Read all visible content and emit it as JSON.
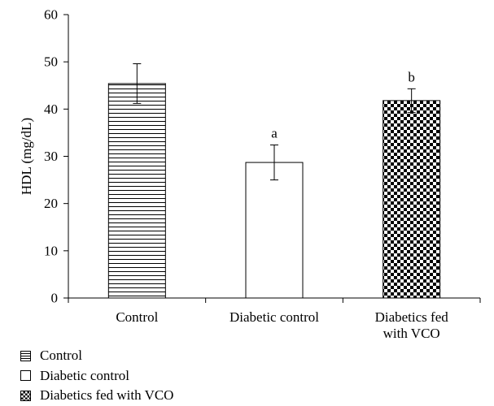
{
  "chart_data": {
    "type": "bar",
    "ylabel": "HDL (mg/dL)",
    "xlabel": "",
    "ylim": [
      0,
      60
    ],
    "yticks": [
      0,
      10,
      20,
      30,
      40,
      50,
      60
    ],
    "categories": [
      "Control",
      "Diabetic control",
      "Diabetics fed with VCO"
    ],
    "category_tick_lines": [
      [
        "Control"
      ],
      [
        "Diabetic control"
      ],
      [
        "Diabetics fed",
        "with VCO"
      ]
    ],
    "values": [
      45.4,
      28.7,
      41.8
    ],
    "errors": [
      4.2,
      3.7,
      2.5
    ],
    "significance_letters": [
      "",
      "a",
      "b"
    ],
    "patterns": [
      "horizontal-lines",
      "none",
      "checkerboard"
    ],
    "legend": {
      "position": "bottom-left",
      "entries": [
        "Control",
        "Diabetic control",
        "Diabetics fed with VCO"
      ]
    },
    "grid": false,
    "colors": {
      "bar_stroke": "#000000",
      "bar_fill": "#ffffff",
      "pattern": "#000000"
    }
  }
}
